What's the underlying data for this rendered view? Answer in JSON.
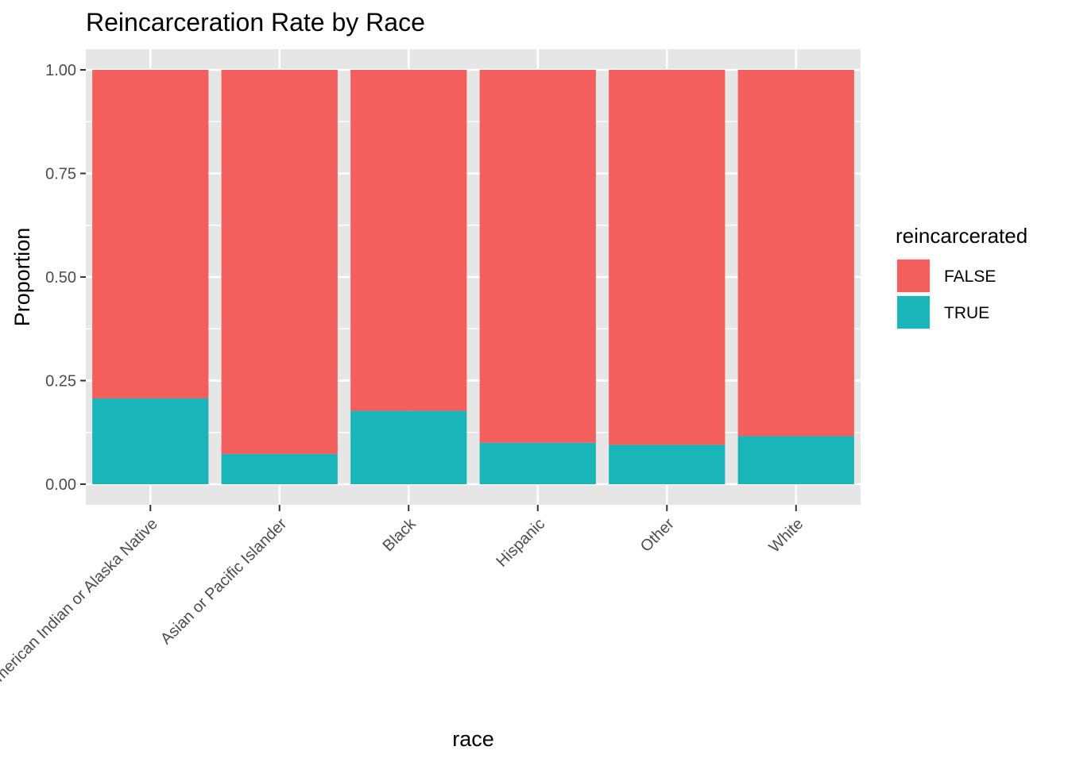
{
  "chart_data": {
    "type": "bar",
    "stacked": true,
    "title": "Reincarceration Rate by Race",
    "xlabel": "race",
    "ylabel": "Proportion",
    "ylim": [
      0,
      1
    ],
    "yticks": [
      "0.00",
      "0.25",
      "0.50",
      "0.75",
      "1.00"
    ],
    "categories": [
      "American Indian or Alaska Native",
      "Asian or Pacific Islander",
      "Black",
      "Hispanic",
      "Other",
      "White"
    ],
    "series": [
      {
        "name": "FALSE",
        "color": "#f25f5c",
        "values": [
          0.793,
          0.927,
          0.823,
          0.9,
          0.905,
          0.884
        ]
      },
      {
        "name": "TRUE",
        "color": "#1ab5b8",
        "values": [
          0.207,
          0.073,
          0.177,
          0.1,
          0.095,
          0.116
        ]
      }
    ],
    "legend": {
      "title": "reincarcerated",
      "placement": "right"
    },
    "grid": true,
    "panel_color": "#e6e6e6"
  }
}
